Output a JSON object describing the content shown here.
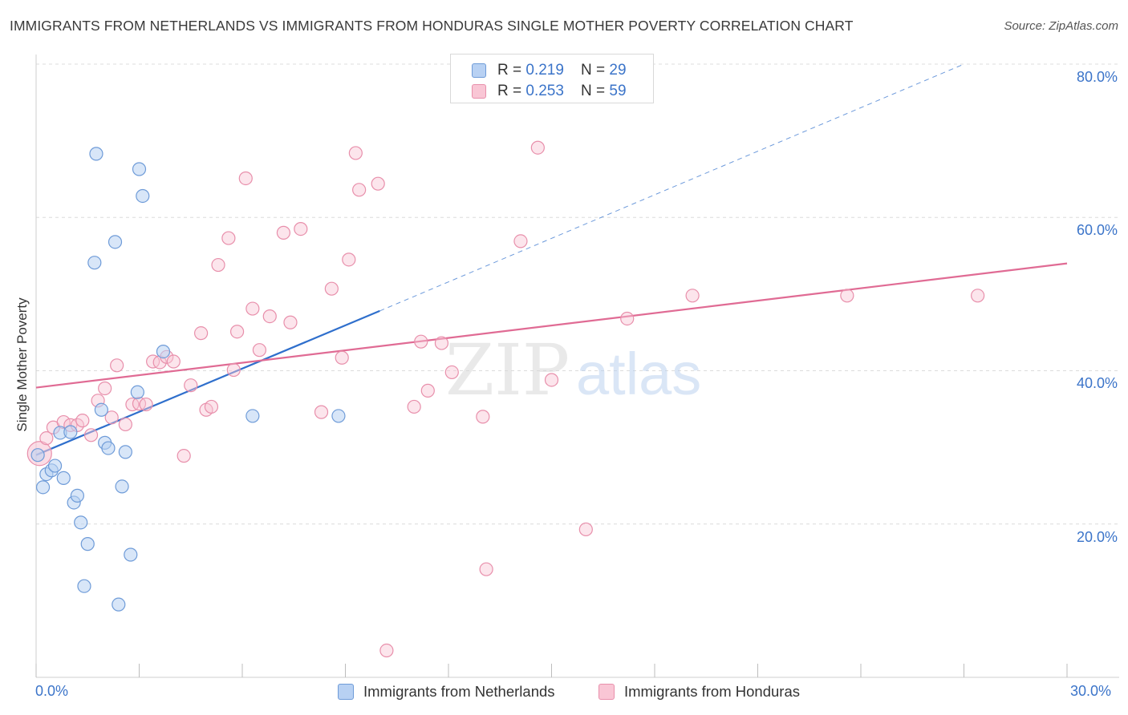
{
  "title": "IMMIGRANTS FROM NETHERLANDS VS IMMIGRANTS FROM HONDURAS SINGLE MOTHER POVERTY CORRELATION CHART",
  "source": "Source: ZipAtlas.com",
  "watermark": {
    "zip": "ZIP",
    "atlas": "atlas"
  },
  "colors": {
    "netherlands_fill": "#b8d1f3",
    "netherlands_stroke": "#6e9bd8",
    "netherlands_line": "#2f6fcc",
    "honduras_fill": "#f9c6d5",
    "honduras_stroke": "#e88fab",
    "honduras_line": "#e06b94",
    "tick_label": "#3b74c9",
    "grid": "#dcdcdc"
  },
  "legend": {
    "rows": [
      {
        "r_label": "R = ",
        "r_value": "0.219",
        "n_label": "N = ",
        "n_value": "29"
      },
      {
        "r_label": "R = ",
        "r_value": "0.253",
        "n_label": "N = ",
        "n_value": "59"
      }
    ]
  },
  "bottom_legend": [
    {
      "label": "Immigrants from Netherlands"
    },
    {
      "label": "Immigrants from Honduras"
    }
  ],
  "axis_labels": {
    "x_min": "0.0%",
    "x_max": "30.0%",
    "y_ticks": [
      "20.0%",
      "40.0%",
      "60.0%",
      "80.0%"
    ]
  },
  "chart_data": {
    "type": "scatter",
    "title": "IMMIGRANTS FROM NETHERLANDS VS IMMIGRANTS FROM HONDURAS SINGLE MOTHER POVERTY CORRELATION CHART",
    "xlabel": "",
    "ylabel": "Single Mother Poverty",
    "xlim": [
      0,
      30
    ],
    "ylim": [
      0,
      80
    ],
    "x_unit": "%",
    "y_unit": "%",
    "y_ticks": [
      20,
      40,
      60,
      80
    ],
    "grid": true,
    "legend_position": "top-center",
    "series": [
      {
        "name": "Immigrants from Netherlands",
        "r": 0.219,
        "n": 29,
        "trend": {
          "x": [
            0,
            10
          ],
          "y": [
            29.0,
            47.8
          ],
          "extended_dashed_to": [
            27,
            80
          ]
        },
        "points": [
          {
            "x": 0.05,
            "y": 29.0
          },
          {
            "x": 0.2,
            "y": 24.8
          },
          {
            "x": 0.3,
            "y": 26.5
          },
          {
            "x": 0.45,
            "y": 27.0
          },
          {
            "x": 0.55,
            "y": 27.6
          },
          {
            "x": 0.7,
            "y": 31.9
          },
          {
            "x": 0.8,
            "y": 26.0
          },
          {
            "x": 1.0,
            "y": 32.0
          },
          {
            "x": 1.1,
            "y": 22.8
          },
          {
            "x": 1.2,
            "y": 23.7
          },
          {
            "x": 1.3,
            "y": 20.2
          },
          {
            "x": 1.4,
            "y": 11.9
          },
          {
            "x": 1.5,
            "y": 17.4
          },
          {
            "x": 1.7,
            "y": 54.1
          },
          {
            "x": 1.75,
            "y": 68.3
          },
          {
            "x": 1.9,
            "y": 34.9
          },
          {
            "x": 2.0,
            "y": 30.6
          },
          {
            "x": 2.1,
            "y": 29.9
          },
          {
            "x": 2.3,
            "y": 56.8
          },
          {
            "x": 2.4,
            "y": 9.5
          },
          {
            "x": 2.5,
            "y": 24.9
          },
          {
            "x": 2.6,
            "y": 29.4
          },
          {
            "x": 2.75,
            "y": 16.0
          },
          {
            "x": 2.95,
            "y": 37.2
          },
          {
            "x": 3.0,
            "y": 66.3
          },
          {
            "x": 3.1,
            "y": 62.8
          },
          {
            "x": 3.7,
            "y": 42.5
          },
          {
            "x": 6.3,
            "y": 34.1
          },
          {
            "x": 8.8,
            "y": 34.1
          }
        ]
      },
      {
        "name": "Immigrants from Honduras",
        "r": 0.253,
        "n": 59,
        "trend": {
          "x": [
            0,
            30
          ],
          "y": [
            37.8,
            54.0
          ]
        },
        "points": [
          {
            "x": 0.1,
            "y": 29.2
          },
          {
            "x": 0.3,
            "y": 31.2
          },
          {
            "x": 0.5,
            "y": 32.6
          },
          {
            "x": 0.8,
            "y": 33.3
          },
          {
            "x": 1.0,
            "y": 32.9
          },
          {
            "x": 1.2,
            "y": 32.9
          },
          {
            "x": 1.35,
            "y": 33.5
          },
          {
            "x": 1.6,
            "y": 31.6
          },
          {
            "x": 1.8,
            "y": 36.1
          },
          {
            "x": 2.0,
            "y": 37.7
          },
          {
            "x": 2.2,
            "y": 33.9
          },
          {
            "x": 2.35,
            "y": 40.7
          },
          {
            "x": 2.6,
            "y": 33.0
          },
          {
            "x": 2.8,
            "y": 35.6
          },
          {
            "x": 3.0,
            "y": 35.7
          },
          {
            "x": 3.2,
            "y": 35.6
          },
          {
            "x": 3.4,
            "y": 41.2
          },
          {
            "x": 3.6,
            "y": 41.1
          },
          {
            "x": 3.8,
            "y": 41.8
          },
          {
            "x": 4.0,
            "y": 41.2
          },
          {
            "x": 4.3,
            "y": 28.9
          },
          {
            "x": 4.5,
            "y": 38.1
          },
          {
            "x": 4.8,
            "y": 44.9
          },
          {
            "x": 4.95,
            "y": 34.9
          },
          {
            "x": 5.1,
            "y": 35.3
          },
          {
            "x": 5.3,
            "y": 53.8
          },
          {
            "x": 5.6,
            "y": 57.3
          },
          {
            "x": 5.75,
            "y": 40.1
          },
          {
            "x": 5.85,
            "y": 45.1
          },
          {
            "x": 6.1,
            "y": 65.1
          },
          {
            "x": 6.3,
            "y": 48.1
          },
          {
            "x": 6.5,
            "y": 42.7
          },
          {
            "x": 6.8,
            "y": 47.1
          },
          {
            "x": 7.2,
            "y": 58.0
          },
          {
            "x": 7.4,
            "y": 46.3
          },
          {
            "x": 7.7,
            "y": 58.5
          },
          {
            "x": 8.3,
            "y": 34.6
          },
          {
            "x": 8.6,
            "y": 50.7
          },
          {
            "x": 8.9,
            "y": 41.7
          },
          {
            "x": 9.1,
            "y": 54.5
          },
          {
            "x": 9.3,
            "y": 68.4
          },
          {
            "x": 9.4,
            "y": 63.6
          },
          {
            "x": 9.95,
            "y": 64.4
          },
          {
            "x": 10.2,
            "y": 3.5
          },
          {
            "x": 11.0,
            "y": 35.3
          },
          {
            "x": 11.2,
            "y": 43.8
          },
          {
            "x": 11.4,
            "y": 37.4
          },
          {
            "x": 11.8,
            "y": 43.6
          },
          {
            "x": 12.1,
            "y": 39.8
          },
          {
            "x": 13.1,
            "y": 14.1
          },
          {
            "x": 13.0,
            "y": 34.0
          },
          {
            "x": 14.1,
            "y": 56.9
          },
          {
            "x": 14.6,
            "y": 69.1
          },
          {
            "x": 15.0,
            "y": 38.8
          },
          {
            "x": 16.0,
            "y": 19.3
          },
          {
            "x": 17.2,
            "y": 46.8
          },
          {
            "x": 19.1,
            "y": 49.8
          },
          {
            "x": 23.6,
            "y": 49.8
          },
          {
            "x": 27.4,
            "y": 49.8
          }
        ]
      }
    ]
  }
}
